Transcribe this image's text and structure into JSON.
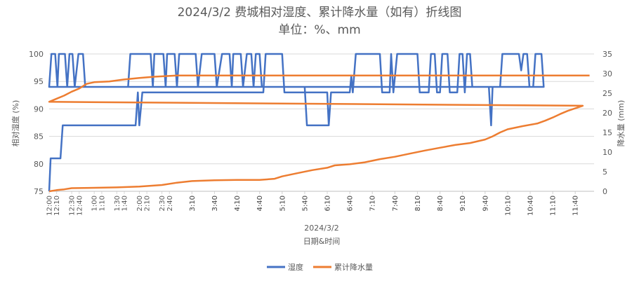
{
  "chart_data": {
    "type": "line",
    "title": "2024/3/2 费城相对湿度、累计降水量（如有）折线图",
    "subtitle": "单位：%、mm",
    "x_group_label": "2024/3/2",
    "xlabel": "日期&时间",
    "y_left_label": "相对湿度 (%)",
    "y_right_label": "降水量 (mm)",
    "y_left_range": [
      75,
      100
    ],
    "y_left_ticks": [
      75,
      80,
      85,
      90,
      95,
      100
    ],
    "y_right_range": [
      0,
      35
    ],
    "y_right_ticks": [
      0,
      5,
      10,
      15,
      20,
      25,
      30,
      35
    ],
    "x_range_minutes": [
      720,
      1445
    ],
    "x_ticks": [
      "12:00",
      "12:30",
      "1:00",
      "1:30",
      "2:00",
      "2:30",
      "3:10",
      "3:40",
      "4:10",
      "4:40",
      "5:10",
      "5:40",
      "6:10",
      "6:40",
      "7:10",
      "7:40",
      "8:10",
      "8:40",
      "9:10",
      "9:40",
      "10:10",
      "10:40",
      "11:10",
      "11:40",
      "12:10",
      "12:40",
      "1:10",
      "1:40",
      "2:10",
      "2:40",
      "3:10",
      "3:40",
      "4:10",
      "4:40",
      "5:10",
      "5:40",
      "6:10",
      "6:40",
      "7:10",
      "7:40",
      "8:10",
      "8:40",
      "9:10",
      "9:40",
      "10:10",
      "10:40",
      "11:10",
      "11:40"
    ],
    "legend": {
      "position": "bottom"
    },
    "colors": {
      "humidity": "#4472c4",
      "precipitation": "#ed7d31"
    },
    "series": [
      {
        "name": "湿度",
        "axis": "left",
        "points": [
          [
            "12:00",
            75
          ],
          [
            "12:02",
            81
          ],
          [
            "12:15",
            81
          ],
          [
            "12:18",
            87
          ],
          [
            "1:55",
            87
          ],
          [
            "1:58",
            93
          ],
          [
            "2:00",
            87
          ],
          [
            "2:04",
            93
          ],
          [
            "3:50",
            93
          ],
          [
            "4:45",
            93
          ],
          [
            "4:48",
            100
          ],
          [
            "5:10",
            100
          ],
          [
            "5:13",
            93
          ],
          [
            "6:10",
            93
          ],
          [
            "6:12",
            87
          ],
          [
            "6:15",
            93
          ],
          [
            "6:40",
            93
          ],
          [
            "6:42",
            96
          ],
          [
            "6:44",
            93
          ],
          [
            "6:48",
            100
          ],
          [
            "7:20",
            100
          ],
          [
            "7:23",
            93
          ],
          [
            "7:33",
            93
          ],
          [
            "7:35",
            100
          ],
          [
            "7:38",
            93
          ],
          [
            "7:43",
            100
          ],
          [
            "8:10",
            100
          ],
          [
            "8:13",
            93
          ],
          [
            "8:25",
            93
          ],
          [
            "8:28",
            100
          ],
          [
            "8:33",
            100
          ],
          [
            "8:36",
            93
          ],
          [
            "8:40",
            93
          ],
          [
            "8:43",
            100
          ],
          [
            "8:50",
            100
          ],
          [
            "8:53",
            93
          ],
          [
            "9:03",
            93
          ],
          [
            "9:06",
            100
          ],
          [
            "9:10",
            100
          ],
          [
            "9:13",
            93
          ],
          [
            "9:16",
            100
          ],
          [
            "9:20",
            100
          ],
          [
            "9:23",
            94
          ],
          [
            "9:45",
            94
          ],
          [
            "9:48",
            87
          ],
          [
            "9:50",
            94
          ],
          [
            "10:00",
            94
          ],
          [
            "10:03",
            100
          ],
          [
            "10:25",
            100
          ],
          [
            "10:28",
            97
          ],
          [
            "10:31",
            100
          ],
          [
            "10:36",
            100
          ],
          [
            "10:39",
            94
          ],
          [
            "10:44",
            94
          ],
          [
            "10:47",
            100
          ],
          [
            "10:55",
            100
          ],
          [
            "10:58",
            94
          ],
          [
            "12:00",
            94
          ],
          [
            "12:03",
            100
          ],
          [
            "12:08",
            100
          ],
          [
            "12:11",
            94
          ],
          [
            "12:13",
            100
          ],
          [
            "12:21",
            100
          ],
          [
            "12:24",
            94
          ],
          [
            "12:27",
            100
          ],
          [
            "12:31",
            100
          ],
          [
            "12:34",
            94
          ],
          [
            "12:39",
            100
          ],
          [
            "12:45",
            100
          ],
          [
            "12:48",
            94
          ],
          [
            "1:45",
            94
          ],
          [
            "1:48",
            100
          ],
          [
            "2:15",
            100
          ],
          [
            "2:18",
            94
          ],
          [
            "2:20",
            100
          ],
          [
            "2:32",
            100
          ],
          [
            "2:35",
            94
          ],
          [
            "2:37",
            100
          ],
          [
            "2:47",
            100
          ],
          [
            "2:50",
            94
          ],
          [
            "2:53",
            100
          ],
          [
            "3:15",
            100
          ],
          [
            "3:18",
            94
          ],
          [
            "3:23",
            100
          ],
          [
            "3:40",
            100
          ],
          [
            "3:43",
            94
          ],
          [
            "3:50",
            100
          ],
          [
            "4:00",
            100
          ],
          [
            "4:03",
            94
          ],
          [
            "4:05",
            100
          ],
          [
            "4:15",
            100
          ],
          [
            "4:18",
            94
          ],
          [
            "4:23",
            100
          ],
          [
            "4:29",
            100
          ],
          [
            "4:32",
            94
          ],
          [
            "4:35",
            100
          ],
          [
            "4:40",
            100
          ],
          [
            "4:43",
            94
          ],
          [
            "5:05",
            94
          ],
          [
            "5:40",
            94
          ],
          [
            "5:43",
            87
          ],
          [
            "6:12",
            87
          ]
        ]
      },
      {
        "name": "累计降水量",
        "axis": "right",
        "points": [
          [
            "12:00",
            0
          ],
          [
            "12:10",
            0.3
          ],
          [
            "12:20",
            0.5
          ],
          [
            "12:30",
            0.8
          ],
          [
            "1:00",
            0.9
          ],
          [
            "1:30",
            1.0
          ],
          [
            "2:00",
            1.2
          ],
          [
            "2:30",
            1.6
          ],
          [
            "2:50",
            2.2
          ],
          [
            "3:10",
            2.6
          ],
          [
            "3:40",
            2.8
          ],
          [
            "4:10",
            2.9
          ],
          [
            "4:40",
            2.9
          ],
          [
            "5:00",
            3.2
          ],
          [
            "5:10",
            3.8
          ],
          [
            "5:30",
            4.6
          ],
          [
            "5:50",
            5.4
          ],
          [
            "6:10",
            6.0
          ],
          [
            "6:20",
            6.6
          ],
          [
            "6:40",
            6.9
          ],
          [
            "7:00",
            7.4
          ],
          [
            "7:20",
            8.2
          ],
          [
            "7:40",
            8.8
          ],
          [
            "8:00",
            9.6
          ],
          [
            "8:20",
            10.4
          ],
          [
            "8:40",
            11.1
          ],
          [
            "9:00",
            11.8
          ],
          [
            "9:20",
            12.3
          ],
          [
            "9:40",
            13.2
          ],
          [
            "9:50",
            14.0
          ],
          [
            "10:00",
            15.0
          ],
          [
            "10:10",
            15.8
          ],
          [
            "10:30",
            16.6
          ],
          [
            "10:50",
            17.3
          ],
          [
            "11:00",
            18.0
          ],
          [
            "11:10",
            18.8
          ],
          [
            "11:20",
            19.7
          ],
          [
            "11:30",
            20.5
          ],
          [
            "11:50",
            21.8
          ],
          [
            "12:00",
            22.8
          ],
          [
            "12:10",
            23.6
          ],
          [
            "12:20",
            24.4
          ],
          [
            "12:30",
            25.4
          ],
          [
            "12:40",
            26.2
          ],
          [
            "12:50",
            27.4
          ],
          [
            "1:00",
            27.8
          ],
          [
            "1:20",
            28.0
          ],
          [
            "1:40",
            28.5
          ],
          [
            "2:00",
            28.9
          ],
          [
            "2:20",
            29.2
          ],
          [
            "2:50",
            29.5
          ],
          [
            "3:20",
            29.5
          ],
          [
            "11:59",
            29.5
          ]
        ]
      }
    ]
  }
}
